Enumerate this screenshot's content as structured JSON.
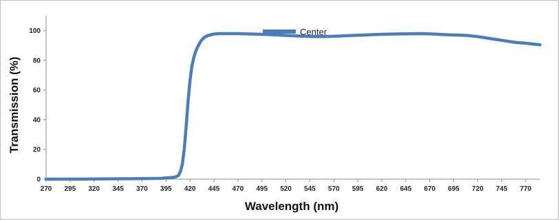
{
  "chart_data": {
    "type": "line",
    "title": "",
    "xlabel": "Wavelength (nm)",
    "ylabel": "Transmission (%)",
    "xlim": [
      270,
      785
    ],
    "ylim": [
      0,
      110
    ],
    "x_ticks": [
      270,
      295,
      320,
      345,
      370,
      395,
      420,
      445,
      470,
      495,
      520,
      545,
      570,
      595,
      620,
      645,
      670,
      695,
      720,
      745,
      770
    ],
    "y_ticks": [
      0,
      20,
      40,
      60,
      80,
      100
    ],
    "grid": false,
    "legend_position": "top-center",
    "series": [
      {
        "name": "Center",
        "color": "#4a7ebb",
        "x": [
          270,
          300,
          330,
          360,
          390,
          400,
          405,
          408,
          410,
          412,
          414,
          416,
          418,
          420,
          422,
          424,
          426,
          428,
          430,
          432,
          435,
          438,
          442,
          446,
          450,
          460,
          470,
          480,
          490,
          500,
          510,
          520,
          530,
          540,
          550,
          560,
          570,
          580,
          590,
          600,
          610,
          620,
          630,
          640,
          650,
          660,
          670,
          680,
          690,
          700,
          710,
          720,
          730,
          740,
          750,
          760,
          770,
          780,
          785
        ],
        "y": [
          0,
          0,
          0.2,
          0.3,
          0.5,
          1,
          1.5,
          2.5,
          5,
          10,
          20,
          35,
          52,
          66,
          76,
          82,
          86,
          89,
          91.5,
          93.5,
          95.5,
          96.5,
          97.3,
          97.8,
          98,
          98,
          98,
          97.8,
          97.6,
          97.4,
          97.1,
          96.8,
          96.5,
          96.2,
          96,
          96,
          96.2,
          96.5,
          96.8,
          97,
          97.3,
          97.5,
          97.7,
          97.8,
          97.9,
          98,
          97.8,
          97.5,
          97.2,
          97,
          96.7,
          96,
          95,
          94,
          93,
          92,
          91.5,
          90.8,
          90.5
        ]
      }
    ]
  }
}
